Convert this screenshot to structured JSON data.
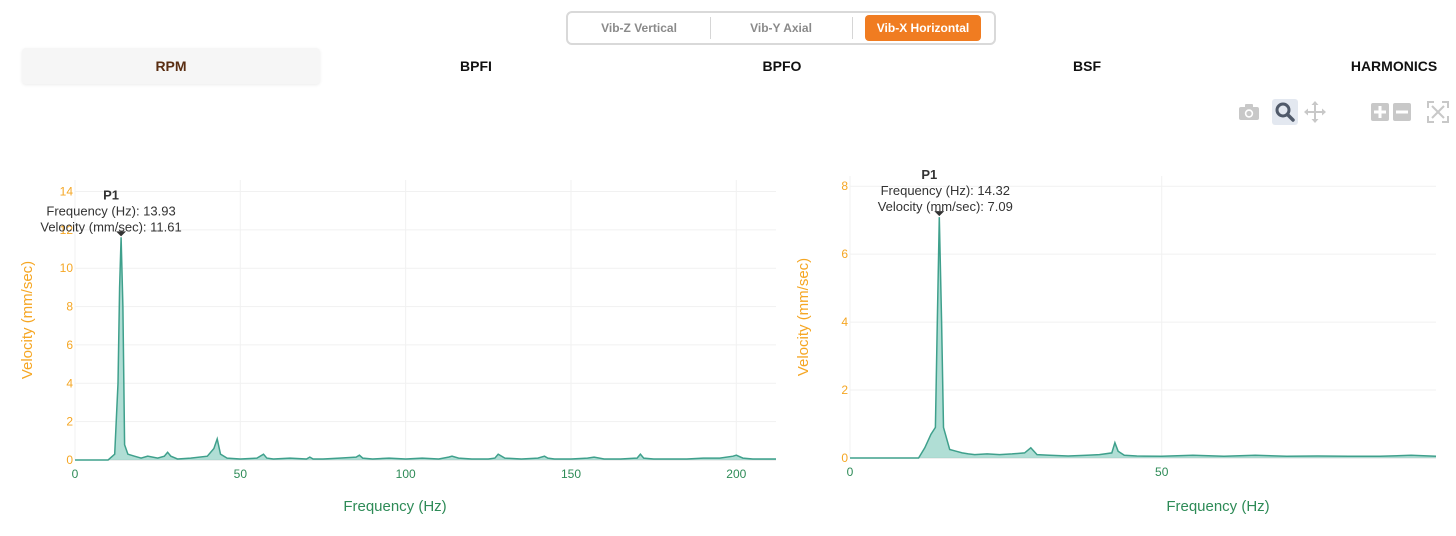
{
  "segments": [
    {
      "label": "Vib-Z Vertical",
      "active": false
    },
    {
      "label": "Vib-Y Axial",
      "active": false
    },
    {
      "label": "Vib-X Horizontal",
      "active": true
    }
  ],
  "tabs": [
    {
      "label": "RPM",
      "active": true
    },
    {
      "label": "BPFI",
      "active": false
    },
    {
      "label": "BPFO",
      "active": false
    },
    {
      "label": "BSF",
      "active": false
    },
    {
      "label": "HARMONICS",
      "active": false
    }
  ],
  "toolbar": {
    "icons": [
      "camera-icon",
      "zoom-icon",
      "pan-icon",
      "zoom-in-icon",
      "zoom-out-icon",
      "autoscale-icon"
    ]
  },
  "colors": {
    "accent": "#f07c21",
    "axis_label": "#f5a623",
    "xaxis_label": "#2e8b57",
    "trace_line": "#3fa08c",
    "trace_fill": "#8fd0c3"
  },
  "chart_data": [
    {
      "type": "area",
      "xlabel": "Frequency (Hz)",
      "ylabel": "Velocity (mm/sec)",
      "xlim": [
        0,
        212
      ],
      "ylim": [
        0,
        14.6
      ],
      "xticks": [
        0,
        50,
        100,
        150,
        200
      ],
      "yticks": [
        0,
        2,
        4,
        6,
        8,
        10,
        12,
        14
      ],
      "x": [
        0,
        10,
        12,
        13,
        13.5,
        13.93,
        14.5,
        15,
        16,
        18,
        20,
        22,
        25,
        27,
        28,
        29,
        31,
        35,
        40,
        42,
        43,
        44,
        46,
        50,
        55,
        57,
        58,
        60,
        65,
        70,
        71,
        72,
        75,
        80,
        85,
        86,
        87,
        90,
        95,
        100,
        105,
        110,
        113,
        114,
        116,
        120,
        125,
        127,
        128,
        130,
        135,
        140,
        142,
        143,
        145,
        150,
        155,
        157,
        160,
        165,
        170,
        171,
        172,
        175,
        180,
        185,
        190,
        195,
        199,
        200,
        202,
        205,
        212
      ],
      "y": [
        0,
        0,
        0.3,
        4,
        9,
        11.61,
        8,
        0.8,
        0.3,
        0.2,
        0.1,
        0.2,
        0.1,
        0.2,
        0.4,
        0.2,
        0.05,
        0.1,
        0.2,
        0.6,
        1.1,
        0.3,
        0.1,
        0.05,
        0.1,
        0.3,
        0.1,
        0.05,
        0.1,
        0.05,
        0.15,
        0.05,
        0.05,
        0.1,
        0.15,
        0.25,
        0.1,
        0.05,
        0.1,
        0.05,
        0.1,
        0.05,
        0.15,
        0.2,
        0.1,
        0.05,
        0.05,
        0.1,
        0.3,
        0.1,
        0.05,
        0.1,
        0.2,
        0.1,
        0.05,
        0.05,
        0.1,
        0.15,
        0.05,
        0.05,
        0.1,
        0.3,
        0.1,
        0.05,
        0.05,
        0.05,
        0.1,
        0.1,
        0.2,
        0.25,
        0.1,
        0.05,
        0.05
      ],
      "annotation": {
        "tag": "P1",
        "x": 13.93,
        "y": 11.61,
        "freq_text": "Frequency (Hz): 13.93",
        "vel_text": "Velocity (mm/sec): 11.61"
      }
    },
    {
      "type": "area",
      "xlabel": "Frequency (Hz)",
      "ylabel": "Velocity (mm/sec)",
      "xlim": [
        0,
        94
      ],
      "ylim": [
        0,
        8.3
      ],
      "xticks": [
        0,
        50
      ],
      "yticks": [
        0,
        2,
        4,
        6,
        8
      ],
      "x": [
        0,
        11,
        12,
        13,
        13.7,
        14,
        14.32,
        14.7,
        15,
        16,
        17,
        18,
        19,
        20,
        22,
        24,
        26,
        28,
        29,
        30,
        32,
        35,
        38,
        40,
        42,
        42.5,
        43,
        44,
        46,
        50,
        55,
        60,
        65,
        70,
        75,
        80,
        85,
        90,
        94
      ],
      "y": [
        0,
        0,
        0.3,
        0.7,
        0.9,
        4,
        7.09,
        4,
        0.9,
        0.25,
        0.2,
        0.15,
        0.12,
        0.1,
        0.12,
        0.1,
        0.12,
        0.15,
        0.3,
        0.1,
        0.08,
        0.06,
        0.08,
        0.1,
        0.15,
        0.45,
        0.2,
        0.08,
        0.06,
        0.05,
        0.08,
        0.05,
        0.08,
        0.05,
        0.06,
        0.05,
        0.05,
        0.08,
        0.05
      ],
      "annotation": {
        "tag": "P1",
        "x": 14.32,
        "y": 7.09,
        "freq_text": "Frequency (Hz): 14.32",
        "vel_text": "Velocity (mm/sec): 7.09"
      }
    }
  ]
}
